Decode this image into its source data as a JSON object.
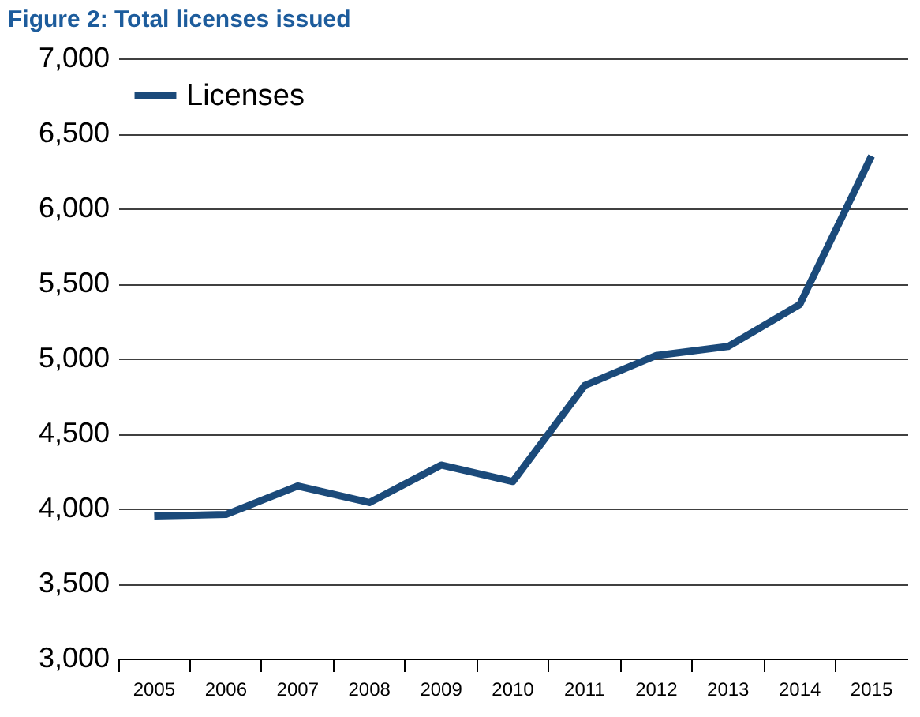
{
  "chart_data": {
    "type": "line",
    "title": "Figure 2: Total licenses issued",
    "categories": [
      "2005",
      "2006",
      "2007",
      "2008",
      "2009",
      "2010",
      "2011",
      "2012",
      "2013",
      "2014",
      "2015"
    ],
    "series": [
      {
        "name": "Licenses",
        "color": "#1b4a7a",
        "values": [
          3950,
          3960,
          4150,
          4040,
          4290,
          4180,
          4820,
          5020,
          5080,
          5360,
          6350
        ]
      }
    ],
    "ylim": [
      3000,
      7000
    ],
    "yticks": [
      {
        "value": 3000,
        "label": "3,000"
      },
      {
        "value": 3500,
        "label": "3,500"
      },
      {
        "value": 4000,
        "label": "4,000"
      },
      {
        "value": 4500,
        "label": "4,500"
      },
      {
        "value": 5000,
        "label": "5,000"
      },
      {
        "value": 5500,
        "label": "5,500"
      },
      {
        "value": 6000,
        "label": "6,000"
      },
      {
        "value": 6500,
        "label": "6,500"
      },
      {
        "value": 7000,
        "label": "7,000"
      }
    ],
    "grid": "y",
    "legend": "top left",
    "marker": "none",
    "line_style": "solid"
  }
}
